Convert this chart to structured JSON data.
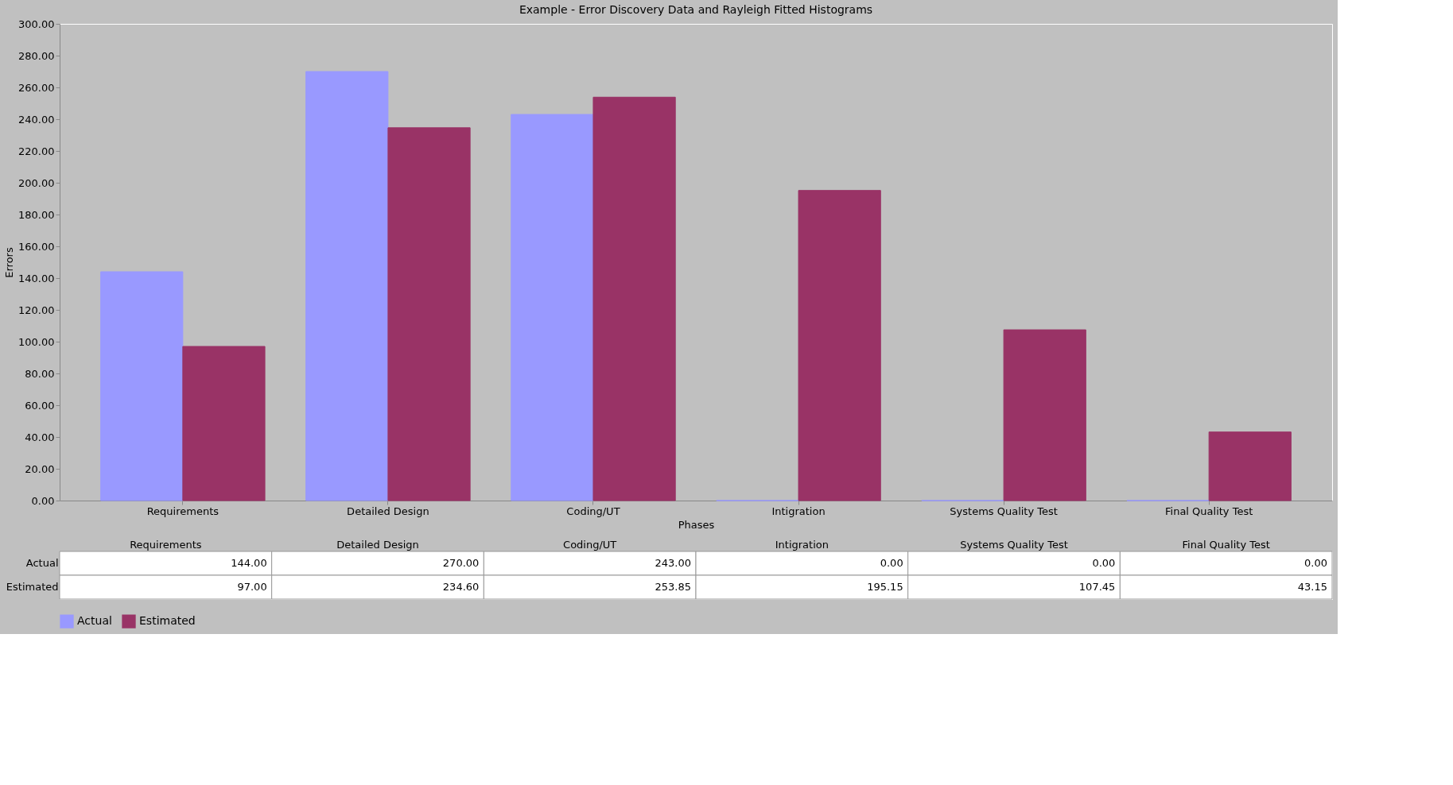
{
  "chart_data": {
    "type": "bar",
    "title": "Example - Error Discovery Data and Rayleigh Fitted Histograms",
    "xlabel": "Phases",
    "ylabel": "Errors",
    "categories": [
      "Requirements",
      "Detailed Design",
      "Coding/UT",
      "Intigration",
      "Systems Quality Test",
      "Final Quality Test"
    ],
    "series": [
      {
        "name": "Actual",
        "color": "#9999ff",
        "values": [
          144.0,
          270.0,
          243.0,
          0.0,
          0.0,
          0.0
        ],
        "value_labels": [
          "144.00",
          "270.00",
          "243.00",
          "0.00",
          "0.00",
          "0.00"
        ]
      },
      {
        "name": "Estimated",
        "color": "#993366",
        "values": [
          97.0,
          234.6,
          253.85,
          195.15,
          107.45,
          43.15
        ],
        "value_labels": [
          "97.00",
          "234.60",
          "253.85",
          "195.15",
          "107.45",
          "43.15"
        ]
      }
    ],
    "ylim": [
      0,
      300
    ],
    "yticks": [
      {
        "value": 0,
        "label": "0.00"
      },
      {
        "value": 20,
        "label": "20.00"
      },
      {
        "value": 40,
        "label": "40.00"
      },
      {
        "value": 60,
        "label": "60.00"
      },
      {
        "value": 80,
        "label": "80.00"
      },
      {
        "value": 100,
        "label": "100.00"
      },
      {
        "value": 120,
        "label": "120.00"
      },
      {
        "value": 140,
        "label": "140.00"
      },
      {
        "value": 160,
        "label": "160.00"
      },
      {
        "value": 180,
        "label": "180.00"
      },
      {
        "value": 200,
        "label": "200.00"
      },
      {
        "value": 220,
        "label": "220.00"
      },
      {
        "value": 240,
        "label": "240.00"
      },
      {
        "value": 260,
        "label": "260.00"
      },
      {
        "value": 280,
        "label": "280.00"
      },
      {
        "value": 300,
        "label": "300.00"
      }
    ],
    "grid": false,
    "legend": "bottom"
  }
}
